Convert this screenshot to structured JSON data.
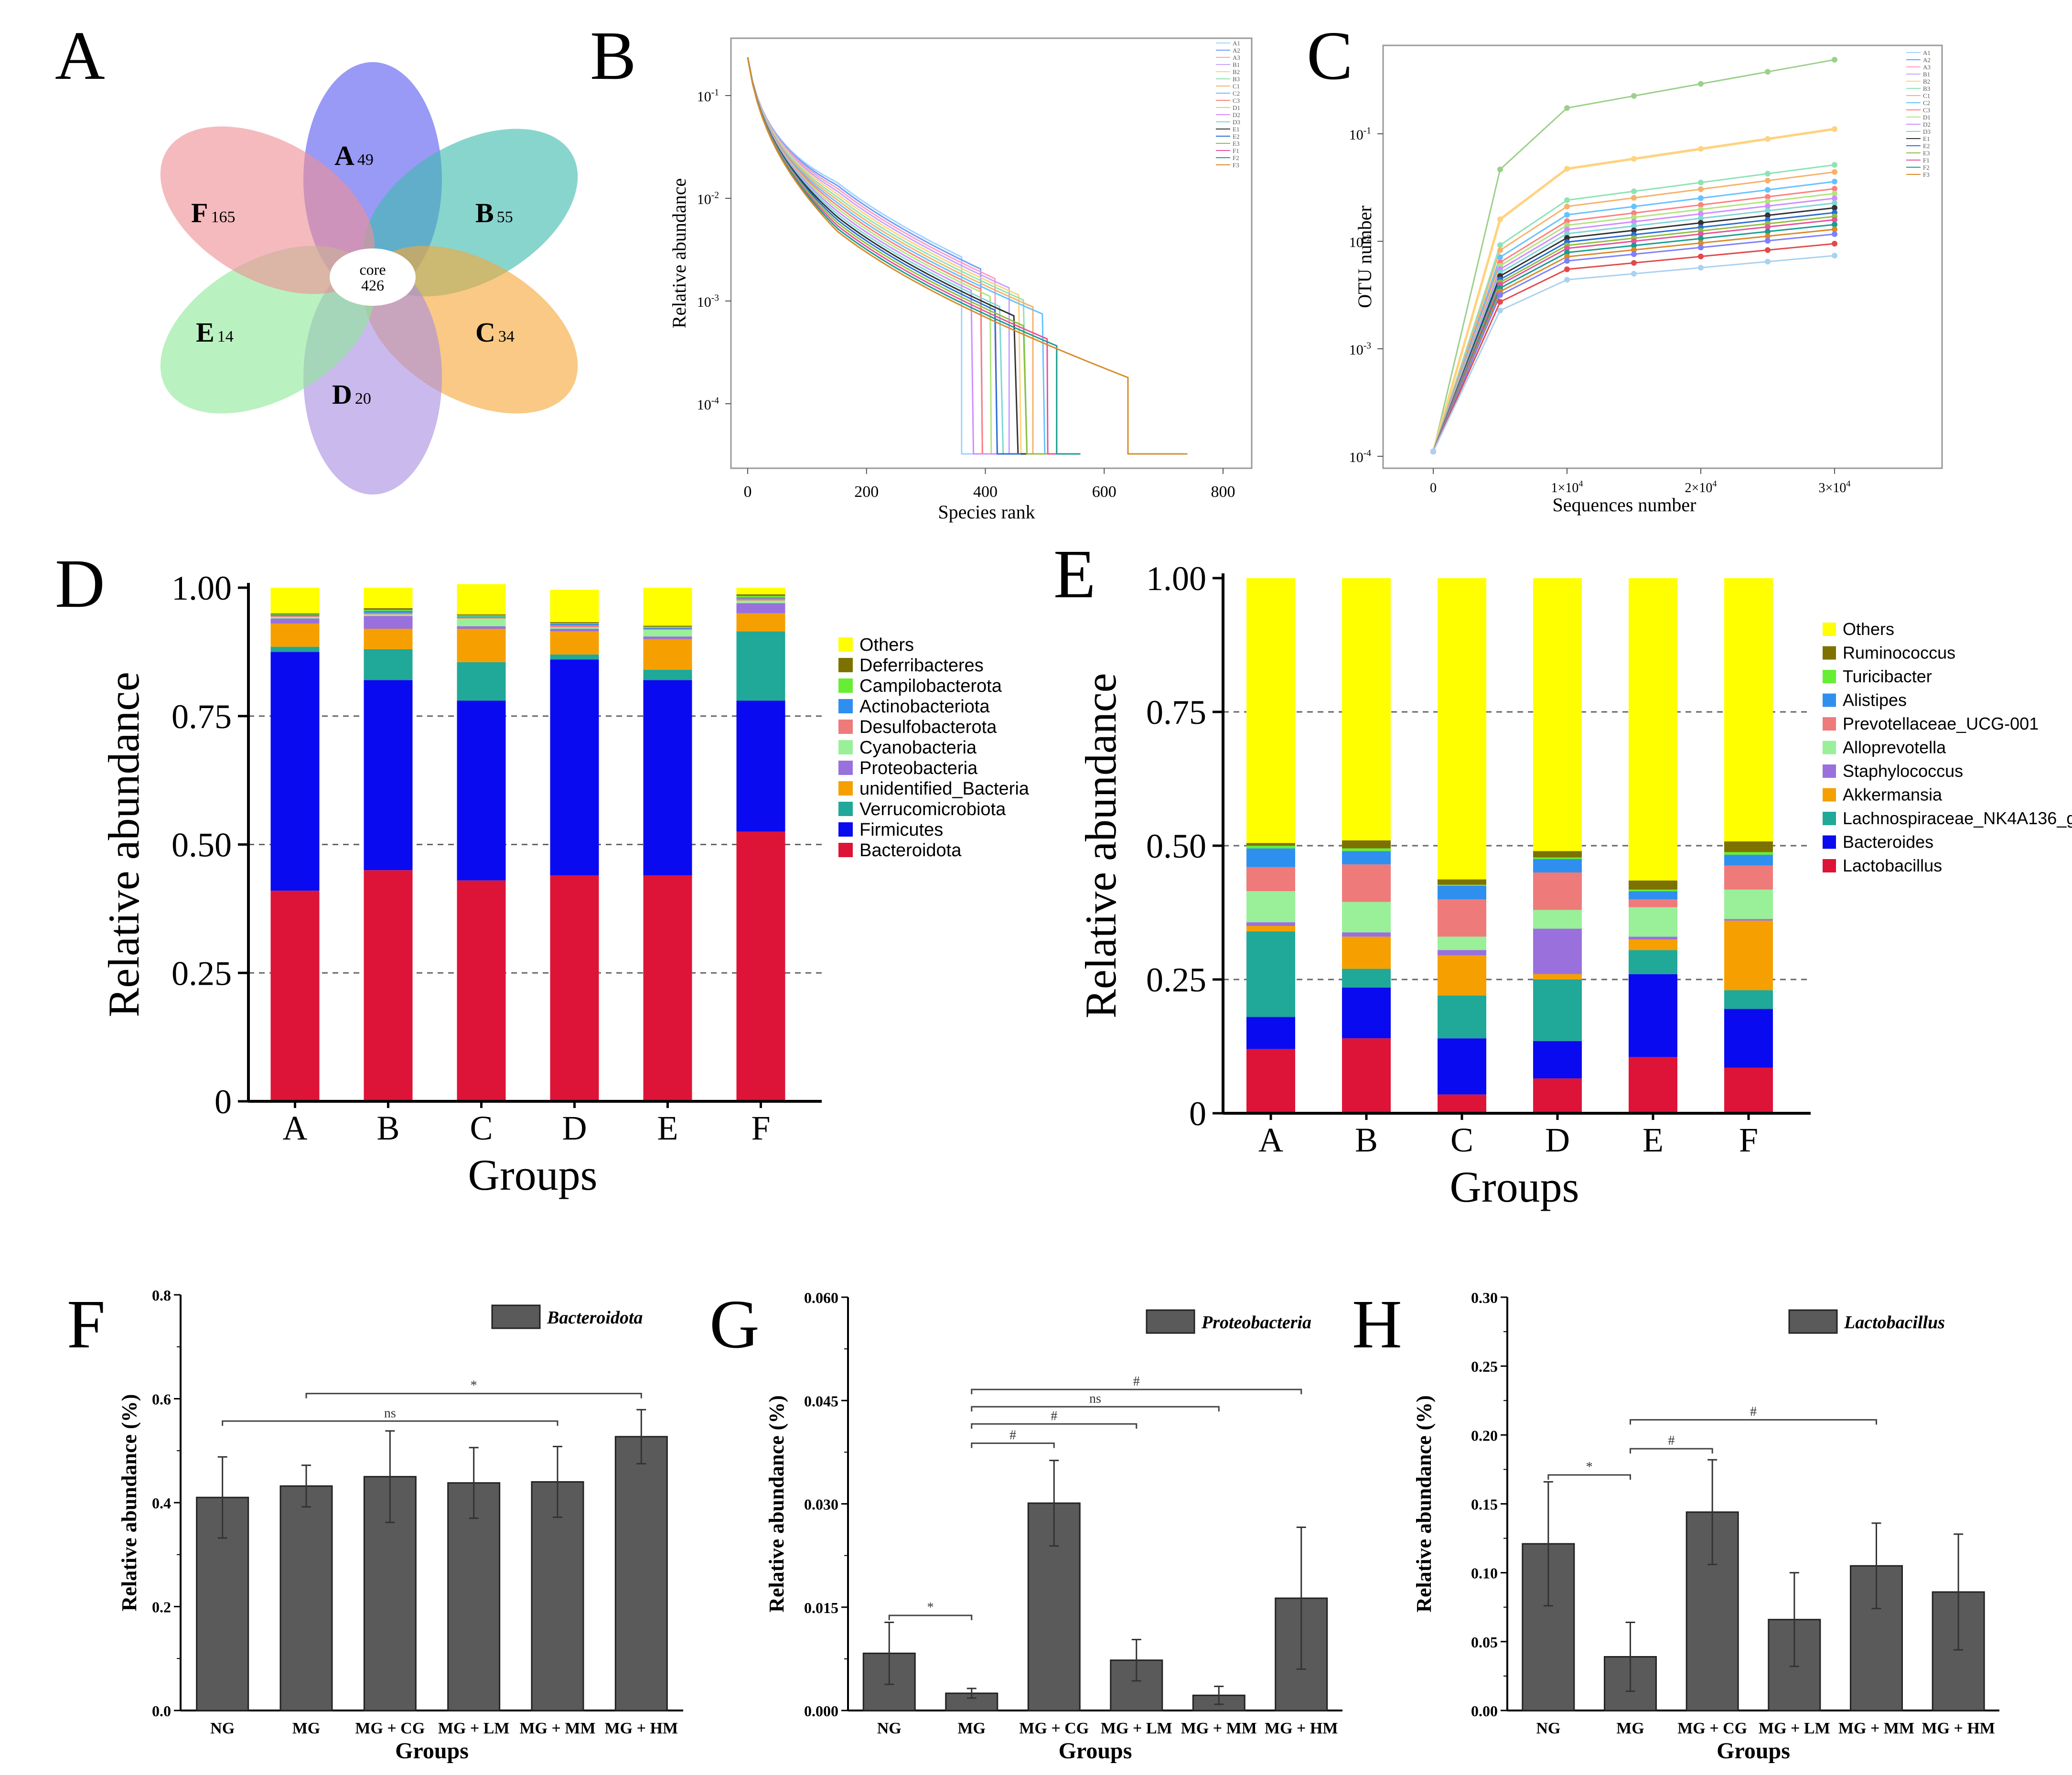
{
  "colors": {
    "bar_dark": "#5a5a5a",
    "venn": {
      "A": "#5b5bf0",
      "B": "#3fbcb0",
      "C": "#f5a83a",
      "D": "#a98ee0",
      "E": "#8fe89a",
      "F": "#ef8f96"
    },
    "phylum": {
      "Others": "#ffff00",
      "Deferribacteres": "#7d7200",
      "Campilobacterota": "#66ee33",
      "Actinobacteriota": "#2f8fef",
      "Desulfobacterota": "#ef7a7a",
      "Cyanobacteria": "#99f099",
      "Proteobacteria": "#9a70dd",
      "unidentified_Bacteria": "#f5a000",
      "Verrucomicrobiota": "#20a898",
      "Firmicutes": "#0a0af0",
      "Bacteroidota": "#dd1438"
    },
    "genus": {
      "Others": "#ffff00",
      "Ruminococcus": "#7d7200",
      "Turicibacter": "#66ee33",
      "Alistipes": "#2f8fef",
      "Prevotellaceae_UCG-001": "#ef7a7a",
      "Alloprevotella": "#99f099",
      "Staphylococcus": "#9a70dd",
      "Akkermansia": "#f5a000",
      "Lachnospiraceae_NK4A136_group": "#20a898",
      "Bacteroides": "#0a0af0",
      "Lactobacillus": "#dd1438"
    },
    "line_palette": [
      "#9fd3ff",
      "#6f9dff",
      "#ff9ec4",
      "#c7a4ff",
      "#ffd27f",
      "#8de3b6",
      "#f6b26b",
      "#66c2ff",
      "#ff7f7f",
      "#b0e57c",
      "#d28cff",
      "#7fd6d6",
      "#333333",
      "#2a6fd6",
      "#8fbf3f",
      "#e6559b",
      "#1a9e8f",
      "#d98b2b",
      "#7f7fff",
      "#e24a4a",
      "#4fb34f",
      "#9f6fdf",
      "#ff9900",
      "#ff66cc"
    ]
  },
  "panel_labels": {
    "A": "A",
    "B": "B",
    "C": "C",
    "D": "D",
    "E": "E",
    "F": "F",
    "G": "G",
    "H": "H"
  },
  "venn": {
    "core_label": "core",
    "core_value": "426",
    "petals": [
      {
        "id": "A",
        "letter": "A",
        "count": "49"
      },
      {
        "id": "B",
        "letter": "B",
        "count": "55"
      },
      {
        "id": "C",
        "letter": "C",
        "count": "34"
      },
      {
        "id": "D",
        "letter": "D",
        "count": "20"
      },
      {
        "id": "E",
        "letter": "E",
        "count": "14"
      },
      {
        "id": "F",
        "letter": "F",
        "count": "165"
      }
    ]
  },
  "rank_curve": {
    "xlabel": "Species rank",
    "ylabel": "Relative abundance",
    "xticks": [
      "0",
      "200",
      "400",
      "600",
      "800"
    ],
    "yticks": [
      {
        "base": "10",
        "exp": "-1"
      },
      {
        "base": "10",
        "exp": "-2"
      },
      {
        "base": "10",
        "exp": "-3"
      },
      {
        "base": "10",
        "exp": "-4"
      }
    ],
    "legend": [
      "A1",
      "A2",
      "A3",
      "B1",
      "B2",
      "B3",
      "C1",
      "C2",
      "C3",
      "D1",
      "D2",
      "D3",
      "E1",
      "E2",
      "E3",
      "F1",
      "F2",
      "F3"
    ]
  },
  "rarefaction": {
    "xlabel": "Sequences number",
    "ylabel": "OTU number",
    "xticks": [
      {
        "base": "0",
        "exp": ""
      },
      {
        "base": "1×10",
        "exp": "4"
      },
      {
        "base": "2×10",
        "exp": "4"
      },
      {
        "base": "3×10",
        "exp": "4"
      }
    ],
    "yticks": [
      {
        "base": "10",
        "exp": "-1"
      },
      {
        "base": "10",
        "exp": "-2"
      },
      {
        "base": "10",
        "exp": "-3"
      },
      {
        "base": "10",
        "exp": "-4"
      }
    ],
    "legend": [
      "A1",
      "A2",
      "A3",
      "B1",
      "B2",
      "B3",
      "C1",
      "C2",
      "C3",
      "D1",
      "D2",
      "D3",
      "E1",
      "E2",
      "E3",
      "F1",
      "F2",
      "F3"
    ]
  },
  "chart_data": [
    {
      "id": "D",
      "type": "bar",
      "stacked": true,
      "xlabel": "Groups",
      "ylabel": "Relative abundance",
      "ylim": [
        0,
        1
      ],
      "yticks": [
        "0",
        "0.25",
        "0.50",
        "0.75",
        "1.00"
      ],
      "grid": "dashed at 0.25, 0.50, 0.75",
      "categories": [
        "A",
        "B",
        "C",
        "D",
        "E",
        "F"
      ],
      "series": [
        {
          "name": "Bacteroidota",
          "values": [
            0.41,
            0.45,
            0.43,
            0.44,
            0.44,
            0.525
          ]
        },
        {
          "name": "Firmicutes",
          "values": [
            0.465,
            0.37,
            0.35,
            0.42,
            0.38,
            0.255
          ]
        },
        {
          "name": "Verrucomicrobiota",
          "values": [
            0.01,
            0.06,
            0.075,
            0.01,
            0.02,
            0.135
          ]
        },
        {
          "name": "unidentified_Bacteria",
          "values": [
            0.045,
            0.04,
            0.065,
            0.045,
            0.06,
            0.035
          ]
        },
        {
          "name": "Proteobacteria",
          "values": [
            0.01,
            0.025,
            0.005,
            0.005,
            0.005,
            0.02
          ]
        },
        {
          "name": "Cyanobacteria",
          "values": [
            0.003,
            0.003,
            0.015,
            0.003,
            0.013,
            0.005
          ]
        },
        {
          "name": "Desulfobacterota",
          "values": [
            0.002,
            0.003,
            0.002,
            0.004,
            0.002,
            0.004
          ]
        },
        {
          "name": "Actinobacteriota",
          "values": [
            0.002,
            0.004,
            0.002,
            0.003,
            0.002,
            0.002
          ]
        },
        {
          "name": "Campilobacterota",
          "values": [
            0.001,
            0.002,
            0.002,
            0.001,
            0.002,
            0.003
          ]
        },
        {
          "name": "Deferribacteres",
          "values": [
            0.002,
            0.003,
            0.002,
            0.002,
            0.002,
            0.003
          ]
        },
        {
          "name": "Others",
          "values": [
            0.05,
            0.04,
            0.059,
            0.063,
            0.074,
            0.013
          ]
        }
      ],
      "legend": [
        "Others",
        "Deferribacteres",
        "Campilobacterota",
        "Actinobacteriota",
        "Desulfobacterota",
        "Cyanobacteria",
        "Proteobacteria",
        "unidentified_Bacteria",
        "Verrucomicrobiota",
        "Firmicutes",
        "Bacteroidota"
      ]
    },
    {
      "id": "E",
      "type": "bar",
      "stacked": true,
      "xlabel": "Groups",
      "ylabel": "Relative abundance",
      "ylim": [
        0,
        1
      ],
      "yticks": [
        "0",
        "0.25",
        "0.50",
        "0.75",
        "1.00"
      ],
      "grid": "dashed at 0.25, 0.50, 0.75",
      "categories": [
        "A",
        "B",
        "C",
        "D",
        "E",
        "F"
      ],
      "series": [
        {
          "name": "Lactobacillus",
          "values": [
            0.12,
            0.14,
            0.035,
            0.065,
            0.105,
            0.085
          ]
        },
        {
          "name": "Bacteroides",
          "values": [
            0.06,
            0.095,
            0.105,
            0.07,
            0.155,
            0.11
          ]
        },
        {
          "name": "Lachnospiraceae_NK4A136_group",
          "values": [
            0.16,
            0.035,
            0.08,
            0.115,
            0.045,
            0.035
          ]
        },
        {
          "name": "Akkermansia",
          "values": [
            0.01,
            0.06,
            0.075,
            0.01,
            0.02,
            0.13
          ]
        },
        {
          "name": "Staphylococcus",
          "values": [
            0.007,
            0.008,
            0.01,
            0.085,
            0.005,
            0.003
          ]
        },
        {
          "name": "Alloprevotella",
          "values": [
            0.058,
            0.057,
            0.025,
            0.035,
            0.055,
            0.055
          ]
        },
        {
          "name": "Prevotellaceae_UCG-001",
          "values": [
            0.045,
            0.07,
            0.07,
            0.07,
            0.015,
            0.045
          ]
        },
        {
          "name": "Alistipes",
          "values": [
            0.035,
            0.025,
            0.025,
            0.025,
            0.015,
            0.02
          ]
        },
        {
          "name": "Turicibacter",
          "values": [
            0.005,
            0.005,
            0.002,
            0.003,
            0.003,
            0.005
          ]
        },
        {
          "name": "Ruminococcus",
          "values": [
            0.005,
            0.015,
            0.01,
            0.012,
            0.017,
            0.02
          ]
        },
        {
          "name": "Others",
          "values": [
            0.495,
            0.49,
            0.563,
            0.51,
            0.565,
            0.492
          ]
        }
      ],
      "legend": [
        "Others",
        "Ruminococcus",
        "Turicibacter",
        "Alistipes",
        "Prevotellaceae_UCG-001",
        "Alloprevotella",
        "Staphylococcus",
        "Akkermansia",
        "Lachnospiraceae_NK4A136_group",
        "Bacteroides",
        "Lactobacillus"
      ]
    },
    {
      "id": "F",
      "type": "bar",
      "title": "Bacteroidota",
      "xlabel": "Groups",
      "ylabel": "Relative abundance (%)",
      "ylim": [
        0,
        0.8
      ],
      "yticks": [
        "0.0",
        "0.2",
        "0.4",
        "0.6",
        "0.8"
      ],
      "categories": [
        "NG",
        "MG",
        "MG + CG",
        "MG + LM",
        "MG + MM",
        "MG + HM"
      ],
      "values": [
        0.41,
        0.432,
        0.45,
        0.438,
        0.44,
        0.527
      ],
      "errors": [
        0.078,
        0.04,
        0.088,
        0.068,
        0.068,
        0.052
      ],
      "annotations": [
        {
          "from": 1,
          "to": 5,
          "level": 0.61,
          "label": "*"
        },
        {
          "from": 0,
          "to": 4,
          "level": 0.557,
          "label": "ns"
        }
      ]
    },
    {
      "id": "G",
      "type": "bar",
      "title": "Proteobacteria",
      "xlabel": "Groups",
      "ylabel": "Relative abundance (%)",
      "ylim": [
        0,
        0.06
      ],
      "yticks": [
        "0.000",
        "0.015",
        "0.030",
        "0.045",
        "0.060"
      ],
      "categories": [
        "NG",
        "MG",
        "MG + CG",
        "MG + LM",
        "MG + MM",
        "MG + HM"
      ],
      "values": [
        0.0083,
        0.0025,
        0.0301,
        0.0073,
        0.0022,
        0.0163
      ],
      "errors": [
        0.0045,
        0.0007,
        0.0062,
        0.003,
        0.0013,
        0.0103
      ],
      "annotations": [
        {
          "from": 0,
          "to": 1,
          "level": 0.0138,
          "label": "*"
        },
        {
          "from": 1,
          "to": 2,
          "level": 0.0388,
          "label": "#"
        },
        {
          "from": 1,
          "to": 3,
          "level": 0.0416,
          "label": "#"
        },
        {
          "from": 1,
          "to": 4,
          "level": 0.0441,
          "label": "ns"
        },
        {
          "from": 1,
          "to": 5,
          "level": 0.0466,
          "label": "#"
        }
      ]
    },
    {
      "id": "H",
      "type": "bar",
      "title": "Lactobacillus",
      "xlabel": "Groups",
      "ylabel": "Relative abundance (%)",
      "ylim": [
        0,
        0.3
      ],
      "yticks": [
        "0.00",
        "0.05",
        "0.10",
        "0.15",
        "0.20",
        "0.25",
        "0.30"
      ],
      "categories": [
        "NG",
        "MG",
        "MG + CG",
        "MG + LM",
        "MG + MM",
        "MG + HM"
      ],
      "values": [
        0.121,
        0.039,
        0.144,
        0.066,
        0.105,
        0.086
      ],
      "errors": [
        0.045,
        0.025,
        0.038,
        0.034,
        0.031,
        0.042
      ],
      "annotations": [
        {
          "from": 0,
          "to": 1,
          "level": 0.171,
          "label": "*"
        },
        {
          "from": 1,
          "to": 2,
          "level": 0.19,
          "label": "#"
        },
        {
          "from": 1,
          "to": 4,
          "level": 0.211,
          "label": "#"
        }
      ]
    }
  ]
}
